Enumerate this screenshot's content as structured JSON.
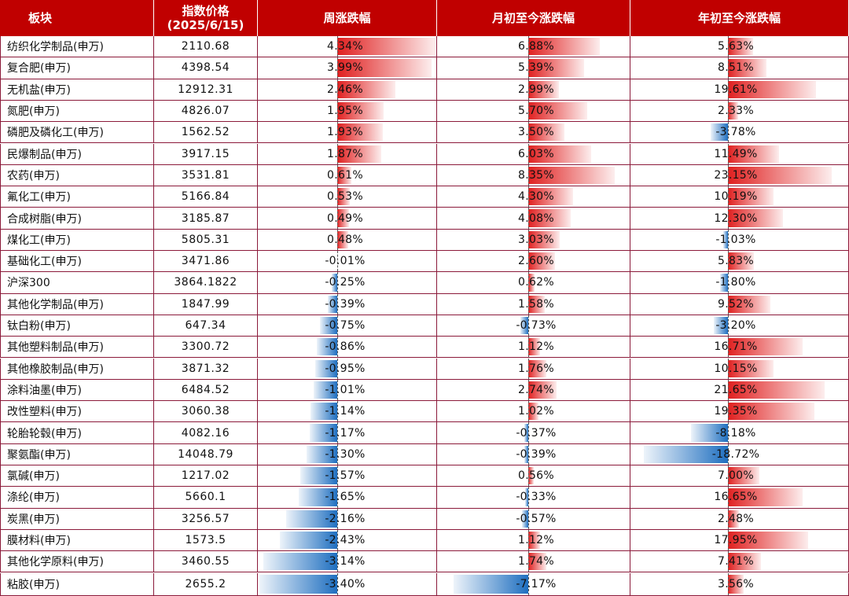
{
  "chart_data": {
    "type": "table",
    "headers": [
      "板块",
      "指数价格\n(2025/6/15)",
      "周涨跌幅",
      "月初至今涨跌幅",
      "年初至今涨跌幅"
    ],
    "rows": [
      {
        "name": "纺织化学制品(申万)",
        "price": "2110.68",
        "week": 4.34,
        "month": 6.88,
        "ytd": 5.63
      },
      {
        "name": "复合肥(申万)",
        "price": "4398.54",
        "week": 3.99,
        "month": 5.39,
        "ytd": 8.51
      },
      {
        "name": "无机盐(申万)",
        "price": "12912.31",
        "week": 2.46,
        "month": 2.99,
        "ytd": 19.61
      },
      {
        "name": "氮肥(申万)",
        "price": "4826.07",
        "week": 1.95,
        "month": 5.7,
        "ytd": 2.33
      },
      {
        "name": "磷肥及磷化工(申万)",
        "price": "1562.52",
        "week": 1.93,
        "month": 3.5,
        "ytd": -3.78
      },
      {
        "name": "民爆制品(申万)",
        "price": "3917.15",
        "week": 1.87,
        "month": 6.03,
        "ytd": 11.49
      },
      {
        "name": "农药(申万)",
        "price": "3531.81",
        "week": 0.61,
        "month": 8.35,
        "ytd": 23.15
      },
      {
        "name": "氟化工(申万)",
        "price": "5166.84",
        "week": 0.53,
        "month": 4.3,
        "ytd": 10.19
      },
      {
        "name": "合成树脂(申万)",
        "price": "3185.87",
        "week": 0.49,
        "month": 4.08,
        "ytd": 12.3
      },
      {
        "name": "煤化工(申万)",
        "price": "5805.31",
        "week": 0.48,
        "month": 3.03,
        "ytd": -1.03
      },
      {
        "name": "基础化工(申万)",
        "price": "3471.86",
        "week": -0.01,
        "month": 2.6,
        "ytd": 5.83
      },
      {
        "name": "沪深300",
        "price": "3864.1822",
        "week": -0.25,
        "month": 0.62,
        "ytd": -1.8
      },
      {
        "name": "其他化学制品(申万)",
        "price": "1847.99",
        "week": -0.39,
        "month": 1.58,
        "ytd": 9.52
      },
      {
        "name": "钛白粉(申万)",
        "price": "647.34",
        "week": -0.75,
        "month": -0.73,
        "ytd": -3.2
      },
      {
        "name": "其他塑料制品(申万)",
        "price": "3300.72",
        "week": -0.86,
        "month": 1.12,
        "ytd": 16.71
      },
      {
        "name": "其他橡胶制品(申万)",
        "price": "3871.32",
        "week": -0.95,
        "month": 1.76,
        "ytd": 10.15
      },
      {
        "name": "涂料油墨(申万)",
        "price": "6484.52",
        "week": -1.01,
        "month": 2.74,
        "ytd": 21.65
      },
      {
        "name": "改性塑料(申万)",
        "price": "3060.38",
        "week": -1.14,
        "month": 1.02,
        "ytd": 19.35
      },
      {
        "name": "轮胎轮毂(申万)",
        "price": "4082.16",
        "week": -1.17,
        "month": -0.37,
        "ytd": -8.18
      },
      {
        "name": "聚氨酯(申万)",
        "price": "14048.79",
        "week": -1.3,
        "month": -0.39,
        "ytd": -18.72
      },
      {
        "name": "氯碱(申万)",
        "price": "1217.02",
        "week": -1.57,
        "month": 0.56,
        "ytd": 7.0
      },
      {
        "name": "涤纶(申万)",
        "price": "5660.1",
        "week": -1.65,
        "month": -0.33,
        "ytd": 16.65
      },
      {
        "name": "炭黑(申万)",
        "price": "3256.57",
        "week": -2.16,
        "month": -0.57,
        "ytd": 2.48
      },
      {
        "name": "膜材料(申万)",
        "price": "1573.5",
        "week": -2.43,
        "month": 1.12,
        "ytd": 17.95
      },
      {
        "name": "其他化学原料(申万)",
        "price": "3460.55",
        "week": -3.14,
        "month": 1.74,
        "ytd": 7.41
      },
      {
        "name": "粘胶(申万)",
        "price": "2655.2",
        "week": -3.4,
        "month": -7.17,
        "ytd": 3.56
      }
    ],
    "colors": {
      "header": "#c00000",
      "positive": "#e02020",
      "negative": "#1f6fc0",
      "grid": "#8b1a3a"
    }
  }
}
